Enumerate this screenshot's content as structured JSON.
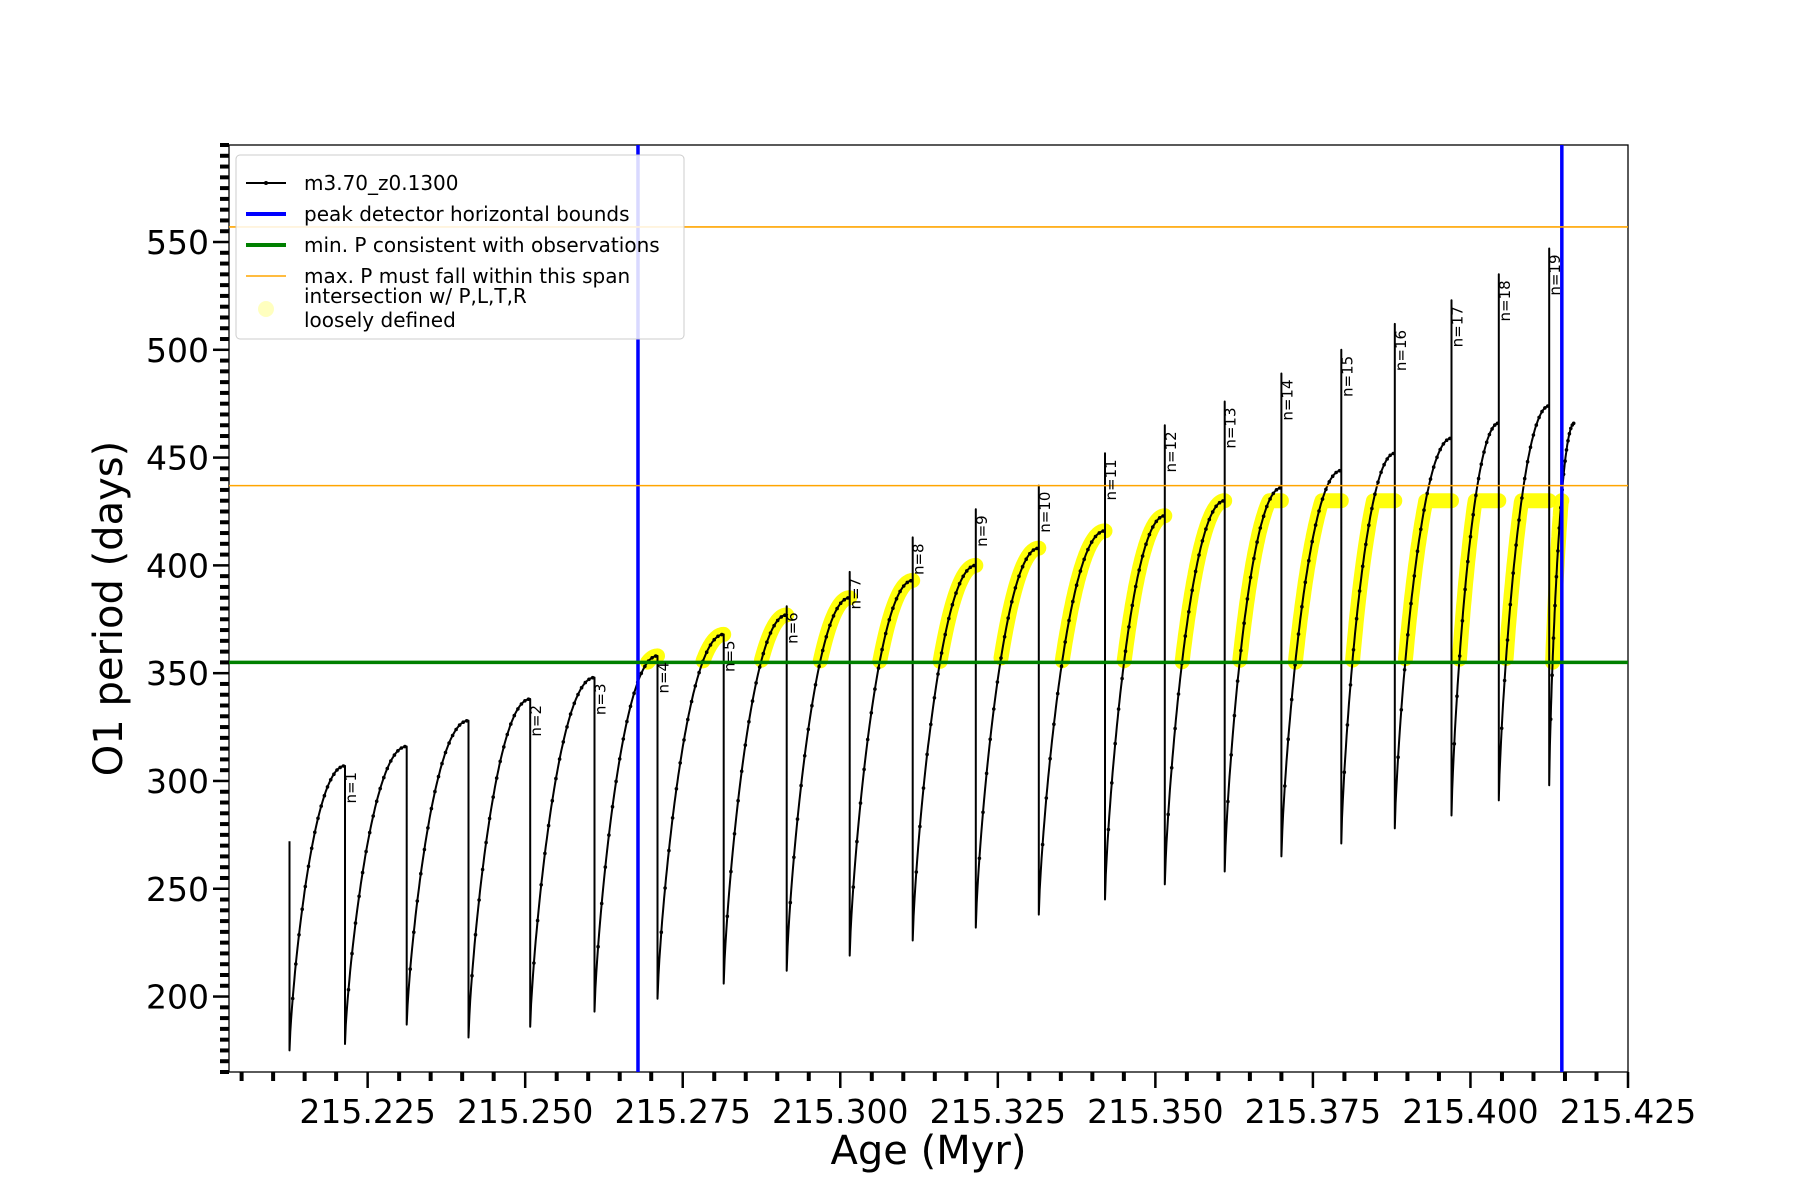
{
  "chart_data": {
    "type": "line",
    "xlabel": "Age (Myr)",
    "ylabel": "O1 period (days)",
    "xlim": [
      215.203,
      215.425
    ],
    "ylim": [
      165,
      595
    ],
    "x_ticks": [
      215.225,
      215.25,
      215.275,
      215.3,
      215.325,
      215.35,
      215.375,
      215.4,
      215.425
    ],
    "x_tick_labels": [
      "215.225",
      "215.250",
      "215.275",
      "215.300",
      "215.325",
      "215.350",
      "215.375",
      "215.400",
      "215.425"
    ],
    "x_minor_step": 0.005,
    "y_ticks": [
      200,
      250,
      300,
      350,
      400,
      450,
      500,
      550
    ],
    "y_tick_labels": [
      "200",
      "250",
      "300",
      "350",
      "400",
      "450",
      "500",
      "550"
    ],
    "y_minor_step": 5,
    "series": [
      {
        "name": "m3.70_z0.1300",
        "color": "#000000",
        "start": {
          "x": 215.2126,
          "y": 272
        },
        "cycles": [
          {
            "t0": 215.2126,
            "t1": 215.2214,
            "min": 175,
            "max": 307
          },
          {
            "t0": 215.2214,
            "t1": 215.2312,
            "min": 178,
            "max": 316
          },
          {
            "t0": 215.2312,
            "t1": 215.241,
            "min": 187,
            "max": 328
          },
          {
            "t0": 215.241,
            "t1": 215.2508,
            "min": 181,
            "max": 338
          },
          {
            "t0": 215.2508,
            "t1": 215.261,
            "min": 186,
            "max": 348
          },
          {
            "t0": 215.261,
            "t1": 215.271,
            "min": 193,
            "max": 358
          },
          {
            "t0": 215.271,
            "t1": 215.2815,
            "min": 199,
            "max": 368
          },
          {
            "t0": 215.2815,
            "t1": 215.2915,
            "min": 206,
            "max": 377
          },
          {
            "t0": 215.2915,
            "t1": 215.3015,
            "min": 212,
            "max": 385
          },
          {
            "t0": 215.3015,
            "t1": 215.3115,
            "min": 219,
            "max": 393
          },
          {
            "t0": 215.3115,
            "t1": 215.3215,
            "min": 226,
            "max": 400
          },
          {
            "t0": 215.3215,
            "t1": 215.3315,
            "min": 232,
            "max": 408
          },
          {
            "t0": 215.3315,
            "t1": 215.342,
            "min": 238,
            "max": 416
          },
          {
            "t0": 215.342,
            "t1": 215.3515,
            "min": 245,
            "max": 423
          },
          {
            "t0": 215.3515,
            "t1": 215.361,
            "min": 252,
            "max": 430
          },
          {
            "t0": 215.361,
            "t1": 215.37,
            "min": 258,
            "max": 436
          },
          {
            "t0": 215.37,
            "t1": 215.3795,
            "min": 265,
            "max": 444
          },
          {
            "t0": 215.3795,
            "t1": 215.388,
            "min": 271,
            "max": 452
          },
          {
            "t0": 215.388,
            "t1": 215.397,
            "min": 278,
            "max": 459
          },
          {
            "t0": 215.397,
            "t1": 215.4045,
            "min": 284,
            "max": 466
          },
          {
            "t0": 215.4045,
            "t1": 215.4125,
            "min": 291,
            "max": 474
          },
          {
            "t0": 215.4125,
            "t1": 215.4165,
            "min": 298,
            "max": 466
          }
        ],
        "spikes": [
          {
            "n": 1,
            "x": 215.2214,
            "peak": 307
          },
          {
            "n": 2,
            "x": 215.2508,
            "peak": 338
          },
          {
            "n": 3,
            "x": 215.261,
            "peak": 348
          },
          {
            "n": 4,
            "x": 215.271,
            "peak": 358
          },
          {
            "n": 5,
            "x": 215.2815,
            "peak": 368
          },
          {
            "n": 6,
            "x": 215.2915,
            "peak": 381
          },
          {
            "n": 7,
            "x": 215.3015,
            "peak": 397
          },
          {
            "n": 8,
            "x": 215.3115,
            "peak": 413
          },
          {
            "n": 9,
            "x": 215.3215,
            "peak": 426
          },
          {
            "n": 10,
            "x": 215.3315,
            "peak": 437
          },
          {
            "n": 11,
            "x": 215.342,
            "peak": 452
          },
          {
            "n": 12,
            "x": 215.3515,
            "peak": 465
          },
          {
            "n": 13,
            "x": 215.361,
            "peak": 476
          },
          {
            "n": 14,
            "x": 215.37,
            "peak": 489
          },
          {
            "n": 15,
            "x": 215.3795,
            "peak": 500
          },
          {
            "n": 16,
            "x": 215.388,
            "peak": 512
          },
          {
            "n": 17,
            "x": 215.397,
            "peak": 523
          },
          {
            "n": 18,
            "x": 215.4045,
            "peak": 535
          },
          {
            "n": 19,
            "x": 215.4125,
            "peak": 547
          }
        ]
      },
      {
        "name": "intersection w/ P,L,T,R\nloosely defined",
        "color": "#ffff00",
        "y_min": 355,
        "y_max": 430
      }
    ],
    "vertical_lines": [
      {
        "name": "peak detector horizontal bounds",
        "x": [
          215.2679,
          215.4145
        ],
        "color": "#0000ff"
      }
    ],
    "horizontal_lines": [
      {
        "name": "min. P consistent with observations",
        "y": 355,
        "color": "#008000"
      },
      {
        "name": "max. P must fall within this span",
        "y": [
          437,
          557
        ],
        "color": "#ffa500"
      }
    ],
    "legend": {
      "placement": "upper-left",
      "entries": [
        "m3.70_z0.1300",
        "peak detector horizontal bounds",
        "min. P consistent with observations",
        "max. P must fall within this span",
        "intersection w/ P,L,T,R",
        "loosely defined"
      ]
    },
    "grid": false
  }
}
